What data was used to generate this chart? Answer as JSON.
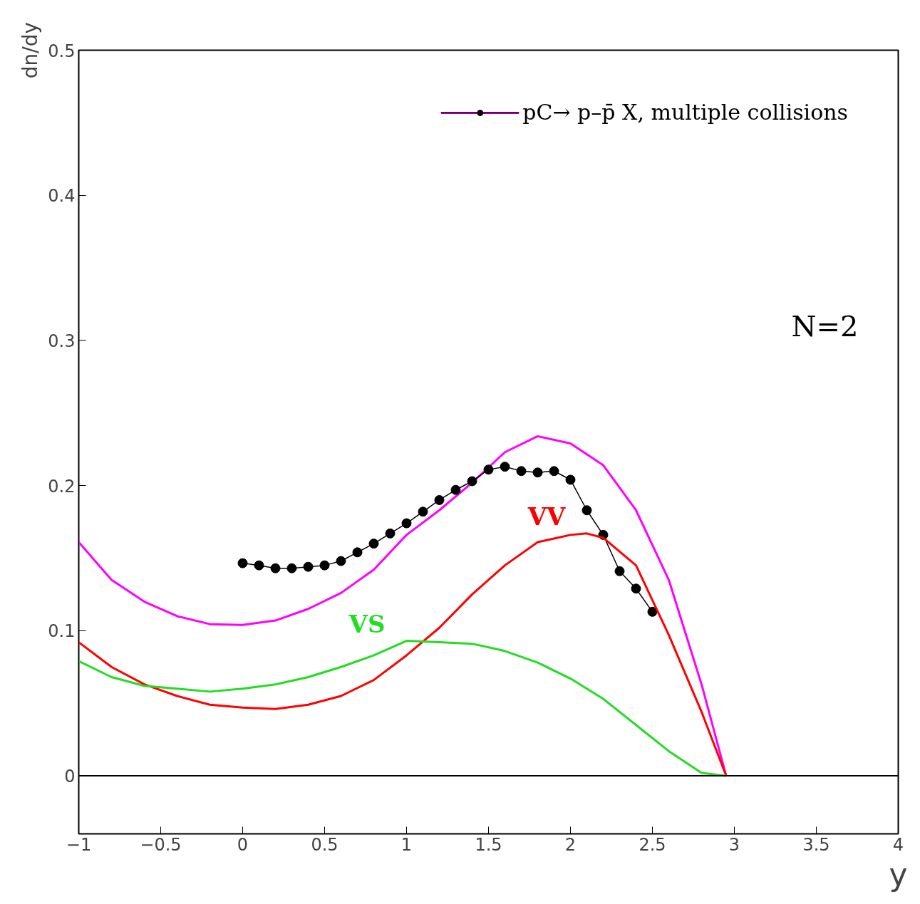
{
  "chart_data": {
    "type": "line",
    "xlabel": "y",
    "ylabel": "dn/dy",
    "xlim": [
      -1,
      4
    ],
    "ylim": [
      -0.04,
      0.5
    ],
    "xticks": [
      {
        "value": -1,
        "label": "−1"
      },
      {
        "value": -0.5,
        "label": "−0.5"
      },
      0,
      0.5,
      1,
      1.5,
      2,
      2.5,
      3,
      3.5,
      4
    ],
    "yticks": [
      0,
      0.1,
      0.2,
      0.3,
      0.4,
      0.5
    ],
    "grid": false,
    "legend": "top right",
    "line_style": "solid",
    "series": [
      {
        "color": "#ff00ff",
        "marker": "none",
        "x": [
          -1,
          -0.8,
          -0.6,
          -0.4,
          -0.2,
          0,
          0.2,
          0.4,
          0.6,
          0.8,
          1.0,
          1.2,
          1.4,
          1.6,
          1.8,
          2.0,
          2.2,
          2.4,
          2.6,
          2.8,
          2.95
        ],
        "values": [
          0.161,
          0.135,
          0.12,
          0.11,
          0.1045,
          0.104,
          0.107,
          0.115,
          0.126,
          0.142,
          0.166,
          0.183,
          0.202,
          0.223,
          0.234,
          0.229,
          0.214,
          0.183,
          0.135,
          0.063,
          0
        ]
      },
      {
        "name": "pC→ p–p̄ X, multiple collisions",
        "color": "#000000",
        "marker": "circle",
        "x": [
          0,
          0.1,
          0.2,
          0.3,
          0.4,
          0.5,
          0.6,
          0.7,
          0.8,
          0.9,
          1.0,
          1.1,
          1.2,
          1.3,
          1.4,
          1.5,
          1.6,
          1.7,
          1.8,
          1.9,
          2.0,
          2.1,
          2.2,
          2.3,
          2.4,
          2.5
        ],
        "values": [
          0.1465,
          0.145,
          0.143,
          0.143,
          0.144,
          0.145,
          0.148,
          0.154,
          0.16,
          0.167,
          0.174,
          0.182,
          0.19,
          0.197,
          0.203,
          0.211,
          0.213,
          0.21,
          0.209,
          0.21,
          0.204,
          0.183,
          0.166,
          0.141,
          0.129,
          0.113
        ]
      },
      {
        "name": "VV",
        "color": "#ff0000",
        "marker": "none",
        "x": [
          -1,
          -0.8,
          -0.6,
          -0.4,
          -0.2,
          0,
          0.2,
          0.4,
          0.6,
          0.8,
          1.0,
          1.2,
          1.4,
          1.6,
          1.8,
          2.0,
          2.1,
          2.2,
          2.4,
          2.6,
          2.8,
          2.95
        ],
        "values": [
          0.092,
          0.075,
          0.063,
          0.055,
          0.049,
          0.047,
          0.046,
          0.049,
          0.055,
          0.066,
          0.083,
          0.102,
          0.125,
          0.145,
          0.161,
          0.166,
          0.167,
          0.164,
          0.145,
          0.097,
          0.044,
          0
        ]
      },
      {
        "name": "VS",
        "color": "#22dd22",
        "marker": "none",
        "x": [
          -1,
          -0.8,
          -0.6,
          -0.4,
          -0.2,
          0,
          0.2,
          0.4,
          0.6,
          0.8,
          1.0,
          1.2,
          1.4,
          1.6,
          1.8,
          2.0,
          2.2,
          2.4,
          2.6,
          2.8,
          2.95
        ],
        "values": [
          0.079,
          0.068,
          0.062,
          0.06,
          0.058,
          0.06,
          0.063,
          0.068,
          0.075,
          0.083,
          0.093,
          0.092,
          0.091,
          0.086,
          0.078,
          0.067,
          0.053,
          0.035,
          0.017,
          0.002,
          0
        ]
      }
    ],
    "ref_lines": [
      {
        "axis": "y",
        "value": 0,
        "color": "#000000"
      }
    ],
    "annotations": [
      "N=2"
    ]
  }
}
